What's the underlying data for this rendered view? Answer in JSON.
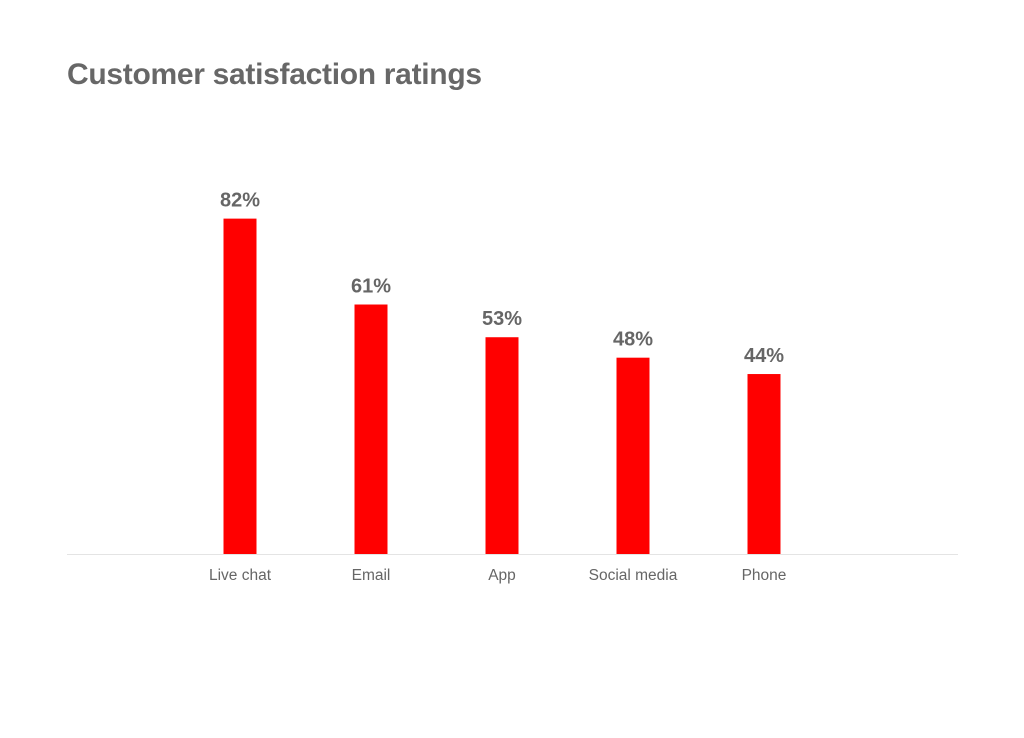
{
  "title": "Customer satisfaction ratings",
  "colors": {
    "bar": "#ff0000",
    "text": "#666666",
    "axis": "#e4e4e4",
    "background": "#ffffff"
  },
  "chart_data": {
    "type": "bar",
    "title": "Customer satisfaction ratings",
    "categories": [
      "Live chat",
      "Email",
      "App",
      "Social media",
      "Phone"
    ],
    "values": [
      82,
      61,
      53,
      48,
      44
    ],
    "value_labels": [
      "82%",
      "61%",
      "53%",
      "48%",
      "44%"
    ],
    "unit": "%",
    "xlabel": "",
    "ylabel": "",
    "ylim": [
      0,
      100
    ],
    "grid": false,
    "legend": "none",
    "y_axis_visible": false
  }
}
